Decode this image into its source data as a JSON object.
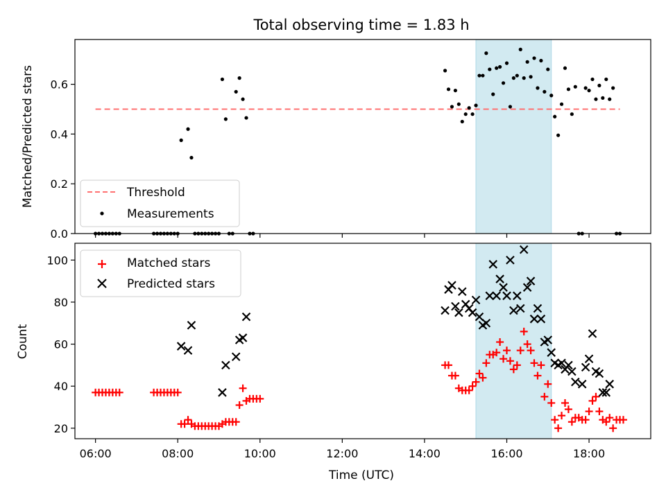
{
  "figure": {
    "title": "Total observing time = 1.83 h",
    "xlabel": "Time (UTC)",
    "highlight_color": "#add8e6"
  },
  "chart_data": [
    {
      "type": "scatter",
      "ylabel": "Matched/Predicted stars",
      "xlim": [
        "05:30",
        "19:30"
      ],
      "ylim": [
        0,
        0.78
      ],
      "yticks": [
        0.0,
        0.2,
        0.4,
        0.6
      ],
      "ytick_labels": [
        "0.0",
        "0.2",
        "0.4",
        "0.6"
      ],
      "highlight_span": [
        "15:15",
        "17:05"
      ],
      "legend": {
        "position": "lower-left",
        "entries": [
          "Threshold",
          "Measurements"
        ]
      },
      "threshold": {
        "name": "Threshold",
        "value": 0.5,
        "x": [
          "06:00",
          "18:45"
        ],
        "color": "#ff7070",
        "style": "dashed"
      },
      "series": [
        {
          "name": "Measurements",
          "color": "#000000",
          "marker": "dot",
          "points": [
            [
              "06:00",
              0
            ],
            [
              "06:05",
              0
            ],
            [
              "06:10",
              0
            ],
            [
              "06:15",
              0
            ],
            [
              "06:20",
              0
            ],
            [
              "06:25",
              0
            ],
            [
              "06:30",
              0
            ],
            [
              "06:35",
              0
            ],
            [
              "07:25",
              0
            ],
            [
              "07:30",
              0
            ],
            [
              "07:35",
              0
            ],
            [
              "07:40",
              0
            ],
            [
              "07:45",
              0
            ],
            [
              "07:50",
              0
            ],
            [
              "07:55",
              0
            ],
            [
              "08:00",
              0
            ],
            [
              "08:05",
              0.375
            ],
            [
              "08:15",
              0.42
            ],
            [
              "08:20",
              0.305
            ],
            [
              "08:25",
              0
            ],
            [
              "08:30",
              0
            ],
            [
              "08:35",
              0
            ],
            [
              "08:40",
              0
            ],
            [
              "08:45",
              0
            ],
            [
              "08:50",
              0
            ],
            [
              "08:55",
              0
            ],
            [
              "09:00",
              0
            ],
            [
              "09:05",
              0.62
            ],
            [
              "09:10",
              0.46
            ],
            [
              "09:15",
              0
            ],
            [
              "09:20",
              0
            ],
            [
              "09:25",
              0.57
            ],
            [
              "09:30",
              0.625
            ],
            [
              "09:35",
              0.54
            ],
            [
              "09:40",
              0.465
            ],
            [
              "09:45",
              0
            ],
            [
              "09:50",
              0
            ],
            [
              "14:30",
              0.655
            ],
            [
              "14:35",
              0.58
            ],
            [
              "14:40",
              0.51
            ],
            [
              "14:45",
              0.575
            ],
            [
              "14:50",
              0.52
            ],
            [
              "14:55",
              0.45
            ],
            [
              "15:00",
              0.48
            ],
            [
              "15:05",
              0.505
            ],
            [
              "15:10",
              0.48
            ],
            [
              "15:15",
              0.515
            ],
            [
              "15:20",
              0.635
            ],
            [
              "15:25",
              0.635
            ],
            [
              "15:30",
              0.725
            ],
            [
              "15:35",
              0.66
            ],
            [
              "15:40",
              0.56
            ],
            [
              "15:45",
              0.665
            ],
            [
              "15:50",
              0.67
            ],
            [
              "15:55",
              0.605
            ],
            [
              "16:00",
              0.685
            ],
            [
              "16:05",
              0.51
            ],
            [
              "16:10",
              0.625
            ],
            [
              "16:15",
              0.635
            ],
            [
              "16:20",
              0.74
            ],
            [
              "16:25",
              0.625
            ],
            [
              "16:30",
              0.69
            ],
            [
              "16:35",
              0.63
            ],
            [
              "16:40",
              0.705
            ],
            [
              "16:45",
              0.585
            ],
            [
              "16:50",
              0.695
            ],
            [
              "16:55",
              0.57
            ],
            [
              "17:00",
              0.66
            ],
            [
              "17:05",
              0.555
            ],
            [
              "17:10",
              0.47
            ],
            [
              "17:15",
              0.395
            ],
            [
              "17:20",
              0.52
            ],
            [
              "17:25",
              0.665
            ],
            [
              "17:30",
              0.58
            ],
            [
              "17:35",
              0.48
            ],
            [
              "17:40",
              0.59
            ],
            [
              "17:45",
              0
            ],
            [
              "17:50",
              0
            ],
            [
              "17:55",
              0.585
            ],
            [
              "18:00",
              0.575
            ],
            [
              "18:05",
              0.62
            ],
            [
              "18:10",
              0.54
            ],
            [
              "18:15",
              0.595
            ],
            [
              "18:20",
              0.545
            ],
            [
              "18:25",
              0.62
            ],
            [
              "18:30",
              0.54
            ],
            [
              "18:35",
              0.585
            ],
            [
              "18:40",
              0
            ],
            [
              "18:45",
              0
            ]
          ]
        }
      ]
    },
    {
      "type": "scatter",
      "ylabel": "Count",
      "xlim": [
        "05:30",
        "19:30"
      ],
      "ylim": [
        15,
        108
      ],
      "yticks": [
        20,
        40,
        60,
        80,
        100
      ],
      "ytick_labels": [
        "20",
        "40",
        "60",
        "80",
        "100"
      ],
      "xticks": [
        "06:00",
        "08:00",
        "10:00",
        "12:00",
        "14:00",
        "16:00",
        "18:00"
      ],
      "highlight_span": [
        "15:15",
        "17:05"
      ],
      "legend": {
        "position": "top-left",
        "entries": [
          "Matched stars",
          "Predicted stars"
        ]
      },
      "series": [
        {
          "name": "Matched stars",
          "color": "#ff0000",
          "marker": "plus",
          "points": [
            [
              "06:00",
              37
            ],
            [
              "06:05",
              37
            ],
            [
              "06:10",
              37
            ],
            [
              "06:15",
              37
            ],
            [
              "06:20",
              37
            ],
            [
              "06:25",
              37
            ],
            [
              "06:30",
              37
            ],
            [
              "06:35",
              37
            ],
            [
              "07:25",
              37
            ],
            [
              "07:30",
              37
            ],
            [
              "07:35",
              37
            ],
            [
              "07:40",
              37
            ],
            [
              "07:45",
              37
            ],
            [
              "07:50",
              37
            ],
            [
              "07:55",
              37
            ],
            [
              "08:00",
              37
            ],
            [
              "08:05",
              22
            ],
            [
              "08:10",
              22
            ],
            [
              "08:15",
              24
            ],
            [
              "08:20",
              22
            ],
            [
              "08:25",
              21
            ],
            [
              "08:30",
              21
            ],
            [
              "08:35",
              21
            ],
            [
              "08:40",
              21
            ],
            [
              "08:45",
              21
            ],
            [
              "08:50",
              21
            ],
            [
              "08:55",
              21
            ],
            [
              "09:00",
              21
            ],
            [
              "09:05",
              22
            ],
            [
              "09:10",
              23
            ],
            [
              "09:15",
              23
            ],
            [
              "09:20",
              23
            ],
            [
              "09:25",
              23
            ],
            [
              "09:30",
              31
            ],
            [
              "09:35",
              39
            ],
            [
              "09:40",
              33
            ],
            [
              "09:45",
              34
            ],
            [
              "09:50",
              34
            ],
            [
              "09:55",
              34
            ],
            [
              "10:00",
              34
            ],
            [
              "14:30",
              50
            ],
            [
              "14:35",
              50
            ],
            [
              "14:40",
              45
            ],
            [
              "14:45",
              45
            ],
            [
              "14:50",
              39
            ],
            [
              "14:55",
              38
            ],
            [
              "15:00",
              38
            ],
            [
              "15:05",
              38
            ],
            [
              "15:10",
              40
            ],
            [
              "15:15",
              42
            ],
            [
              "15:20",
              46
            ],
            [
              "15:25",
              44
            ],
            [
              "15:30",
              51
            ],
            [
              "15:35",
              55
            ],
            [
              "15:40",
              55
            ],
            [
              "15:45",
              56
            ],
            [
              "15:50",
              61
            ],
            [
              "15:55",
              53
            ],
            [
              "16:00",
              57
            ],
            [
              "16:05",
              52
            ],
            [
              "16:10",
              48
            ],
            [
              "16:15",
              50
            ],
            [
              "16:20",
              57
            ],
            [
              "16:25",
              66
            ],
            [
              "16:30",
              60
            ],
            [
              "16:35",
              57
            ],
            [
              "16:40",
              51
            ],
            [
              "16:45",
              45
            ],
            [
              "16:50",
              50
            ],
            [
              "16:55",
              35
            ],
            [
              "17:00",
              41
            ],
            [
              "17:05",
              32
            ],
            [
              "17:10",
              24
            ],
            [
              "17:15",
              20
            ],
            [
              "17:20",
              26
            ],
            [
              "17:25",
              32
            ],
            [
              "17:30",
              29
            ],
            [
              "17:35",
              23
            ],
            [
              "17:40",
              25
            ],
            [
              "17:45",
              25
            ],
            [
              "17:50",
              24
            ],
            [
              "17:55",
              24
            ],
            [
              "18:00",
              28
            ],
            [
              "18:05",
              33
            ],
            [
              "18:10",
              35
            ],
            [
              "18:15",
              28
            ],
            [
              "18:20",
              24
            ],
            [
              "18:25",
              23
            ],
            [
              "18:30",
              25
            ],
            [
              "18:35",
              20
            ],
            [
              "18:40",
              24
            ],
            [
              "18:45",
              24
            ],
            [
              "18:50",
              24
            ]
          ]
        },
        {
          "name": "Predicted stars",
          "color": "#000000",
          "marker": "x",
          "points": [
            [
              "08:05",
              59
            ],
            [
              "08:15",
              57
            ],
            [
              "08:20",
              69
            ],
            [
              "09:05",
              37
            ],
            [
              "09:10",
              50
            ],
            [
              "09:25",
              54
            ],
            [
              "09:30",
              62
            ],
            [
              "09:35",
              63
            ],
            [
              "09:40",
              73
            ],
            [
              "14:30",
              76
            ],
            [
              "14:35",
              86
            ],
            [
              "14:40",
              88
            ],
            [
              "14:45",
              78
            ],
            [
              "14:50",
              75
            ],
            [
              "14:55",
              85
            ],
            [
              "15:00",
              79
            ],
            [
              "15:05",
              77
            ],
            [
              "15:10",
              75
            ],
            [
              "15:15",
              81
            ],
            [
              "15:20",
              73
            ],
            [
              "15:25",
              69
            ],
            [
              "15:30",
              70
            ],
            [
              "15:35",
              83
            ],
            [
              "15:40",
              98
            ],
            [
              "15:45",
              83
            ],
            [
              "15:50",
              91
            ],
            [
              "15:55",
              87
            ],
            [
              "16:00",
              83
            ],
            [
              "16:05",
              100
            ],
            [
              "16:10",
              76
            ],
            [
              "16:15",
              83
            ],
            [
              "16:20",
              77
            ],
            [
              "16:25",
              105
            ],
            [
              "16:30",
              87
            ],
            [
              "16:35",
              90
            ],
            [
              "16:40",
              72
            ],
            [
              "16:45",
              77
            ],
            [
              "16:50",
              72
            ],
            [
              "16:55",
              61
            ],
            [
              "17:00",
              62
            ],
            [
              "17:05",
              56
            ],
            [
              "17:10",
              51
            ],
            [
              "17:15",
              50
            ],
            [
              "17:20",
              51
            ],
            [
              "17:25",
              48
            ],
            [
              "17:30",
              50
            ],
            [
              "17:35",
              47
            ],
            [
              "17:40",
              42
            ],
            [
              "17:50",
              41
            ],
            [
              "17:55",
              49
            ],
            [
              "18:00",
              53
            ],
            [
              "18:05",
              65
            ],
            [
              "18:10",
              47
            ],
            [
              "18:15",
              46
            ],
            [
              "18:20",
              37
            ],
            [
              "18:25",
              37
            ],
            [
              "18:30",
              41
            ]
          ]
        }
      ]
    }
  ]
}
